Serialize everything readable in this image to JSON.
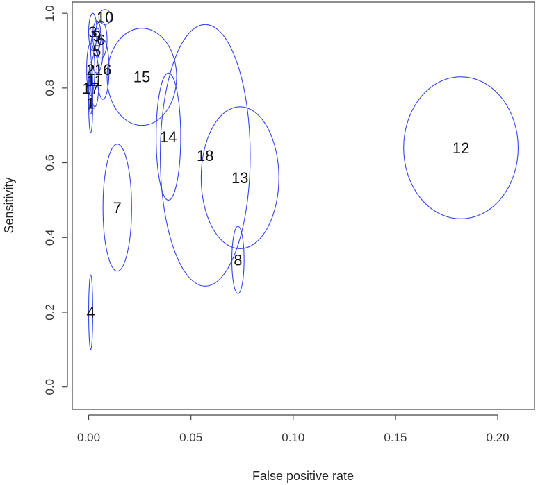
{
  "chart_data": {
    "type": "scatter",
    "xlabel": "False positive rate",
    "ylabel": "Sensitivity",
    "xlim": [
      -0.008,
      0.218
    ],
    "ylim": [
      -0.06,
      1.03
    ],
    "x_ticks": [
      0.0,
      0.05,
      0.1,
      0.15,
      0.2
    ],
    "x_tick_labels": [
      "0.00",
      "0.05",
      "0.10",
      "0.15",
      "0.20"
    ],
    "y_ticks": [
      0.0,
      0.2,
      0.4,
      0.6,
      0.8,
      1.0
    ],
    "y_tick_labels": [
      "0.0",
      "0.2",
      "0.4",
      "0.6",
      "0.8",
      "1.0"
    ],
    "ellipse_color": "#3344ee",
    "points": [
      {
        "label": "1",
        "x": 0.001,
        "y": 0.76,
        "rx": 0.001,
        "ry": 0.08
      },
      {
        "label": "2",
        "x": 0.001,
        "y": 0.85,
        "rx": 0.002,
        "ry": 0.07
      },
      {
        "label": "3",
        "x": 0.002,
        "y": 0.95,
        "rx": 0.002,
        "ry": 0.05
      },
      {
        "label": "4",
        "x": 0.001,
        "y": 0.2,
        "rx": 0.001,
        "ry": 0.1
      },
      {
        "label": "5",
        "x": 0.004,
        "y": 0.9,
        "rx": 0.003,
        "ry": 0.06
      },
      {
        "label": "6",
        "x": 0.006,
        "y": 0.93,
        "rx": 0.003,
        "ry": 0.05
      },
      {
        "label": "7",
        "x": 0.014,
        "y": 0.48,
        "rx": 0.007,
        "ry": 0.17
      },
      {
        "label": "8",
        "x": 0.073,
        "y": 0.34,
        "rx": 0.003,
        "ry": 0.09
      },
      {
        "label": "9",
        "x": 0.004,
        "y": 0.94,
        "rx": 0.002,
        "ry": 0.04
      },
      {
        "label": "10",
        "x": 0.008,
        "y": 0.99,
        "rx": 0.003,
        "ry": 0.02
      },
      {
        "label": "11",
        "x": 0.003,
        "y": 0.82,
        "rx": 0.002,
        "ry": 0.07
      },
      {
        "label": "12",
        "x": 0.182,
        "y": 0.64,
        "rx": 0.028,
        "ry": 0.19
      },
      {
        "label": "13",
        "x": 0.074,
        "y": 0.56,
        "rx": 0.019,
        "ry": 0.19
      },
      {
        "label": "14",
        "x": 0.039,
        "y": 0.67,
        "rx": 0.006,
        "ry": 0.17
      },
      {
        "label": "15",
        "x": 0.026,
        "y": 0.83,
        "rx": 0.017,
        "ry": 0.13
      },
      {
        "label": "16",
        "x": 0.007,
        "y": 0.85,
        "rx": 0.003,
        "ry": 0.08
      },
      {
        "label": "17",
        "x": 0.001,
        "y": 0.8,
        "rx": 0.001,
        "ry": 0.07
      },
      {
        "label": "18",
        "x": 0.057,
        "y": 0.62,
        "rx": 0.022,
        "ry": 0.35
      }
    ]
  }
}
